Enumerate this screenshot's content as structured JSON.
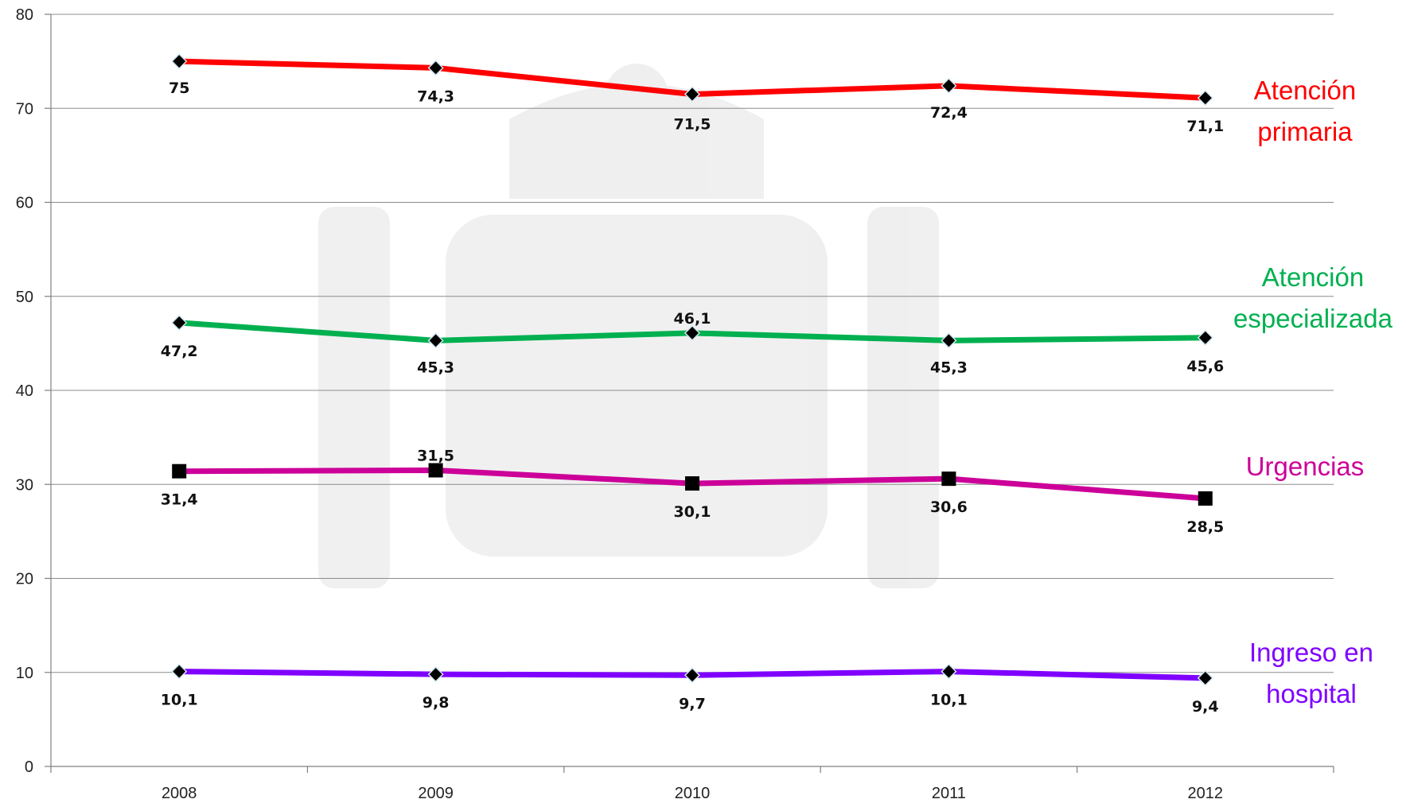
{
  "chart_data": {
    "type": "line",
    "title": "",
    "xlabel": "",
    "ylabel": "",
    "categories": [
      "2008",
      "2009",
      "2010",
      "2011",
      "2012"
    ],
    "ylim": [
      0,
      80
    ],
    "yticks": [
      "0",
      "10",
      "20",
      "30",
      "40",
      "50",
      "60",
      "70",
      "80"
    ],
    "grid": true,
    "legend": "right-inline-labels",
    "series": [
      {
        "name_lines": [
          "Atención",
          "primaria"
        ],
        "color": "#ff0000",
        "marker": "diamond",
        "values": [
          75,
          74.3,
          71.5,
          72.4,
          71.1
        ],
        "labels": [
          "75",
          "74,3",
          "71,5",
          "72,4",
          "71,1"
        ]
      },
      {
        "name_lines": [
          "Atención",
          "especializada"
        ],
        "color": "#00b050",
        "marker": "diamond",
        "values": [
          47.2,
          45.3,
          46.1,
          45.3,
          45.6
        ],
        "labels": [
          "47,2",
          "45,3",
          "46,1",
          "45,3",
          "45,6"
        ]
      },
      {
        "name_lines": [
          "Urgencias"
        ],
        "color": "#cc0099",
        "marker": "square",
        "values": [
          31.4,
          31.5,
          30.1,
          30.6,
          28.5
        ],
        "labels": [
          "31,4",
          "31,5",
          "30,1",
          "30,6",
          "28,5"
        ]
      },
      {
        "name_lines": [
          "Ingreso en",
          "hospital"
        ],
        "color": "#7f00ff",
        "marker": "diamond",
        "values": [
          10.1,
          9.8,
          9.7,
          10.1,
          9.4
        ],
        "labels": [
          "10,1",
          "9,8",
          "9,7",
          "10,1",
          "9,4"
        ]
      }
    ]
  }
}
